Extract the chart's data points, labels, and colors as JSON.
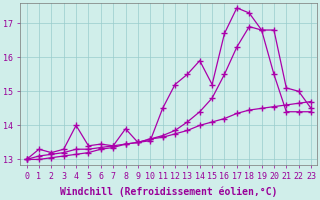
{
  "xlabel": "Windchill (Refroidissement éolien,°C)",
  "ylabel": "",
  "background_color": "#d0eeea",
  "line_color": "#aa00aa",
  "xlim": [
    -0.5,
    23.5
  ],
  "ylim": [
    12.85,
    17.6
  ],
  "xticks": [
    0,
    1,
    2,
    3,
    4,
    5,
    6,
    7,
    8,
    9,
    10,
    11,
    12,
    13,
    14,
    15,
    16,
    17,
    18,
    19,
    20,
    21,
    22,
    23
  ],
  "yticks": [
    13,
    14,
    15,
    16,
    17
  ],
  "grid_color": "#99cccc",
  "line1_x": [
    0,
    1,
    2,
    3,
    4,
    5,
    6,
    7,
    8,
    9,
    10,
    11,
    12,
    13,
    14,
    15,
    16,
    17,
    18,
    19,
    20,
    21,
    22,
    23
  ],
  "line1_y": [
    13.0,
    13.3,
    13.2,
    13.3,
    14.0,
    13.4,
    13.45,
    13.4,
    13.9,
    13.5,
    13.55,
    14.5,
    15.2,
    15.5,
    15.9,
    15.2,
    16.7,
    17.45,
    17.3,
    16.8,
    15.5,
    14.4,
    14.4,
    14.4
  ],
  "line2_x": [
    0,
    1,
    2,
    3,
    4,
    5,
    6,
    7,
    8,
    9,
    10,
    11,
    12,
    13,
    14,
    15,
    16,
    17,
    18,
    19,
    20,
    21,
    22,
    23
  ],
  "line2_y": [
    13.0,
    13.1,
    13.15,
    13.2,
    13.3,
    13.3,
    13.35,
    13.4,
    13.45,
    13.5,
    13.6,
    13.7,
    13.85,
    14.1,
    14.4,
    14.8,
    15.5,
    16.3,
    16.9,
    16.8,
    16.8,
    15.1,
    15.0,
    14.5
  ],
  "line3_x": [
    0,
    1,
    2,
    3,
    4,
    5,
    6,
    7,
    8,
    9,
    10,
    11,
    12,
    13,
    14,
    15,
    16,
    17,
    18,
    19,
    20,
    21,
    22,
    23
  ],
  "line3_y": [
    13.0,
    13.0,
    13.05,
    13.1,
    13.15,
    13.2,
    13.3,
    13.35,
    13.45,
    13.5,
    13.6,
    13.65,
    13.75,
    13.85,
    14.0,
    14.1,
    14.2,
    14.35,
    14.45,
    14.5,
    14.55,
    14.6,
    14.65,
    14.7
  ],
  "marker": "+",
  "markersize": 4,
  "linewidth": 0.9,
  "font_color": "#990099",
  "axis_label_fontsize": 7,
  "tick_fontsize": 6
}
